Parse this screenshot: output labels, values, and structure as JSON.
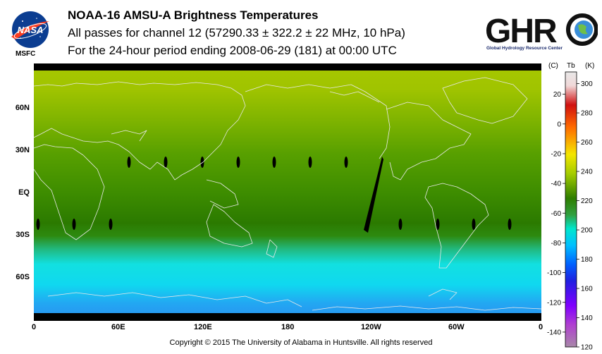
{
  "header": {
    "title": "NOAA-16 AMSU-A Brightness Temperatures",
    "subtitle": "All passes for channel 12 (57290.33 ± 322.2 ± 22 MHz, 10 hPa)",
    "period": "For the 24-hour period ending 2008-06-29 (181) at 00:00 UTC"
  },
  "logos": {
    "nasa_text": "NASA",
    "msfc_text": "MSFC",
    "ghrc_text": "GHRC",
    "ghrc_subtitle": "Global Hydrology Resource Center"
  },
  "map": {
    "lat_labels": [
      "60N",
      "30N",
      "EQ",
      "30S",
      "60S"
    ],
    "lon_labels": [
      "0",
      "60E",
      "120E",
      "180",
      "120W",
      "60W",
      "0"
    ]
  },
  "colorbar": {
    "header_c": "(C)",
    "header_tb": "Tb",
    "header_k": "(K)",
    "celsius_ticks": [
      "20",
      "0",
      "-20",
      "-40",
      "-60",
      "-80",
      "-100",
      "-120",
      "-140"
    ],
    "kelvin_ticks": [
      "300",
      "280",
      "260",
      "240",
      "220",
      "200",
      "180",
      "160",
      "140",
      "120"
    ],
    "colors": [
      "#e6e6e6",
      "#cc0000",
      "#ff7a00",
      "#f2e600",
      "#a4cc00",
      "#2e7d00",
      "#00e6cc",
      "#0080ff",
      "#2020e0",
      "#8000ff",
      "#a070a0"
    ]
  },
  "chart_data": {
    "type": "heatmap",
    "title": "NOAA-16 AMSU-A Brightness Temperatures",
    "subtitle": "All passes for channel 12 (57290.33 ± 322.2 ± 22 MHz, 10 hPa)",
    "x_tick_labels": [
      "0",
      "60E",
      "120E",
      "180",
      "120W",
      "60W",
      "0"
    ],
    "y_tick_labels": [
      "60N",
      "30N",
      "EQ",
      "30S",
      "60S"
    ],
    "colorbar_celsius_range": [
      -150,
      35
    ],
    "colorbar_kelvin_range": [
      120,
      308
    ]
  },
  "footer": {
    "copyright": "Copyright © 2015 The University of Alabama in Huntsville.  All rights reserved"
  }
}
